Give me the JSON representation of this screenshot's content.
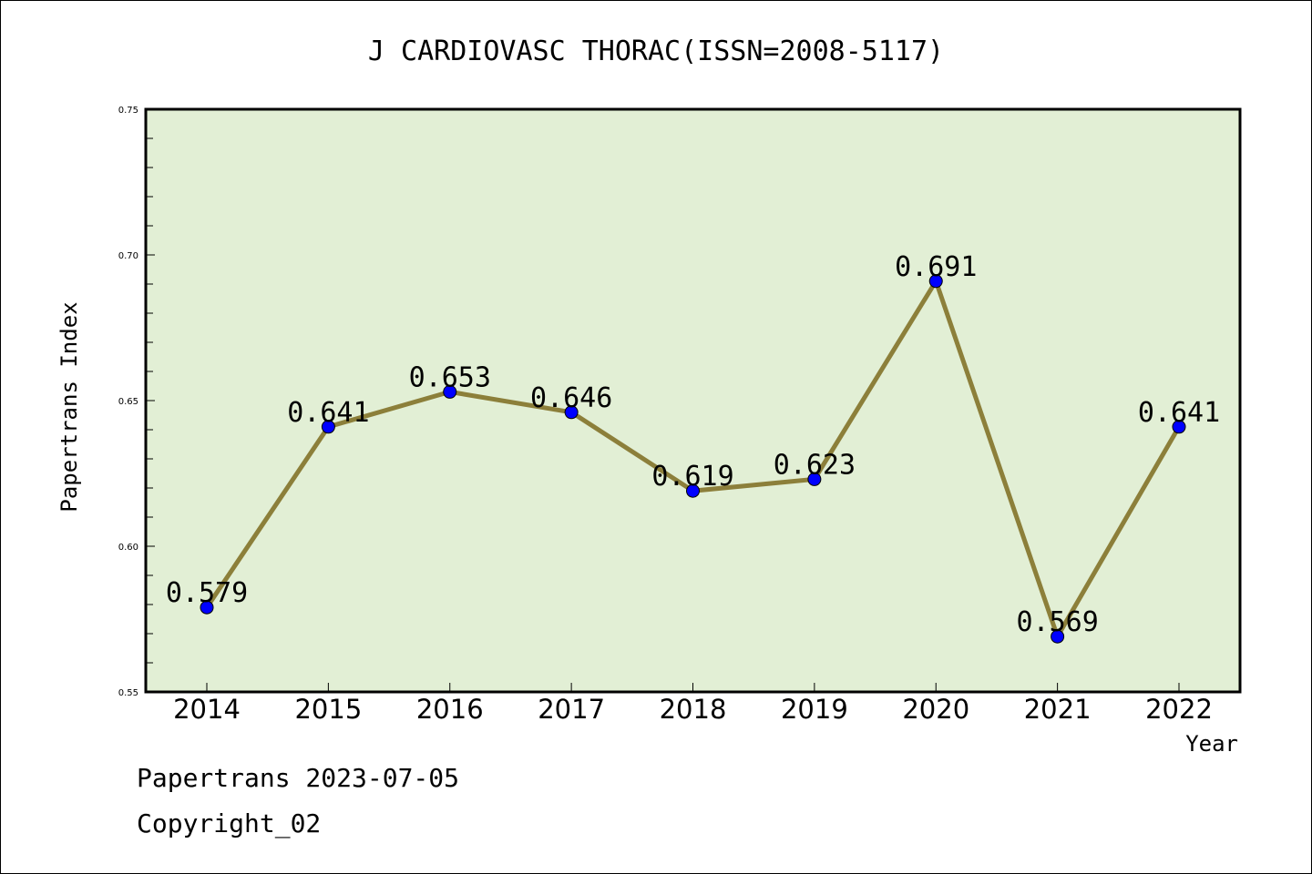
{
  "chart_data": {
    "type": "line",
    "title": "J CARDIOVASC THORAC(ISSN=2008-5117)",
    "xlabel": "Year",
    "ylabel": "Papertrans Index",
    "categories": [
      "2014",
      "2015",
      "2016",
      "2017",
      "2018",
      "2019",
      "2020",
      "2021",
      "2022"
    ],
    "values": [
      0.579,
      0.641,
      0.653,
      0.646,
      0.619,
      0.623,
      0.691,
      0.569,
      0.641
    ],
    "data_labels": [
      "0.579",
      "0.641",
      "0.653",
      "0.646",
      "0.619",
      "0.623",
      "0.691",
      "0.569",
      "0.641"
    ],
    "ylim": [
      0.55,
      0.75
    ],
    "yticks": [
      0.55,
      0.6,
      0.65,
      0.7,
      0.75
    ],
    "ytick_labels": [
      "0.55",
      "0.60",
      "0.65",
      "0.70",
      "0.75"
    ],
    "grid": false,
    "colors": {
      "plot_background": "#e2efd5",
      "line": "#8c7f3a",
      "marker": "#0000ff"
    }
  },
  "footer": {
    "source": "Papertrans 2023-07-05",
    "copyright": "Copyright_02"
  }
}
